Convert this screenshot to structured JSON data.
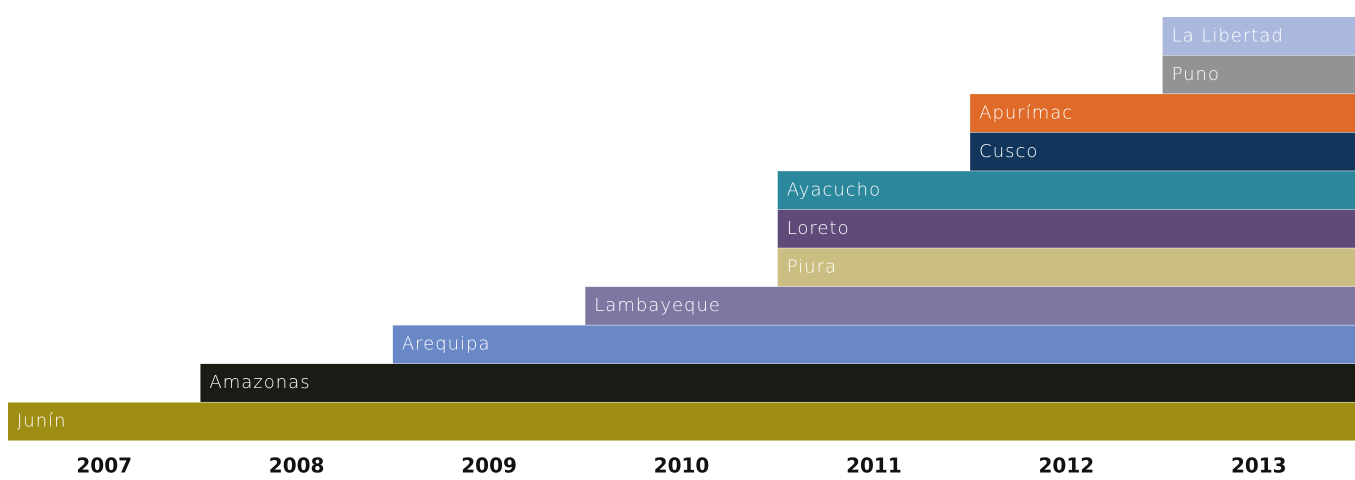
{
  "chart_data": {
    "type": "timeline",
    "xticks": [
      2007,
      2008,
      2009,
      2010,
      2011,
      2012,
      2013
    ],
    "series": [
      {
        "name": "La Libertad",
        "color": "#aab8de",
        "start": 2013
      },
      {
        "name": "Puno",
        "color": "#939393",
        "start": 2013
      },
      {
        "name": "Apurímac",
        "color": "#e06a27",
        "start": 2012
      },
      {
        "name": "Cusco",
        "color": "#12365b",
        "start": 2012
      },
      {
        "name": "Ayacucho",
        "color": "#2b879b",
        "start": 2011
      },
      {
        "name": "Loreto",
        "color": "#5f4a7a",
        "start": 2011
      },
      {
        "name": "Piura",
        "color": "#cbbe82",
        "start": 2011
      },
      {
        "name": "Lambayeque",
        "color": "#7e77a2",
        "start": 2010
      },
      {
        "name": "Arequipa",
        "color": "#6a87c6",
        "start": 2009
      },
      {
        "name": "Amazonas",
        "color": "#1b1b16",
        "start": 2008
      },
      {
        "name": "Junín",
        "color": "#9e8d13",
        "start": 2007
      }
    ]
  }
}
